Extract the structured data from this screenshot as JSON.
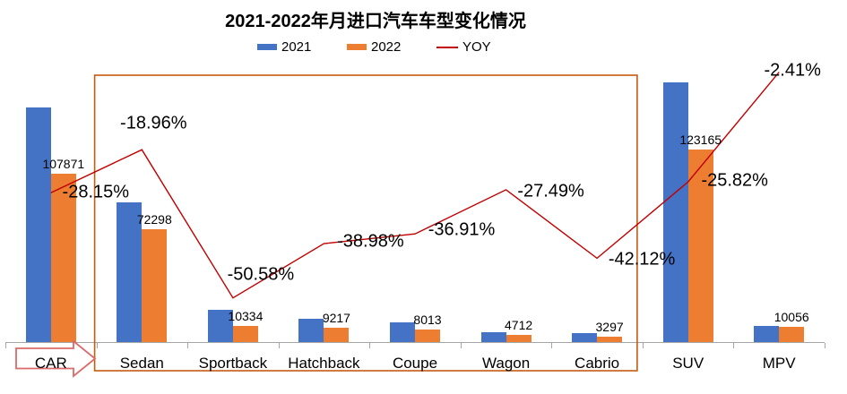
{
  "title": "2021-2022年月进口汽车车型变化情况",
  "legend": [
    {
      "label": "2021",
      "color": "#4472C4",
      "marker": "square"
    },
    {
      "label": "2022",
      "color": "#ED7D31",
      "marker": "square"
    },
    {
      "label": "YOY",
      "color": "#C00000",
      "marker": "line"
    }
  ],
  "chart_data": {
    "type": "combo",
    "categories": [
      "CAR",
      "Sedan",
      "Sportback",
      "Hatchback",
      "Coupe",
      "Wagon",
      "Cabrio",
      "SUV",
      "MPV"
    ],
    "series": [
      {
        "name": "2021",
        "type": "bar",
        "axis": "primary",
        "color": "#4472C4",
        "values": [
          150133,
          89213,
          20911,
          15105,
          12701,
          6498,
          5696,
          166036,
          10304
        ],
        "note": "values estimated from bar heights and YOY percentages; not labeled on chart"
      },
      {
        "name": "2022",
        "type": "bar",
        "axis": "primary",
        "color": "#ED7D31",
        "values": [
          107871,
          72298,
          10334,
          9217,
          8013,
          4712,
          3297,
          123165,
          10056
        ],
        "data_labels": [
          "107871",
          "72298",
          "10334",
          "9217",
          "8013",
          "4712",
          "3297",
          "123165",
          "10056"
        ]
      },
      {
        "name": "YOY",
        "type": "line",
        "axis": "secondary",
        "color": "#C00000",
        "values": [
          -28.15,
          -18.96,
          -50.58,
          -38.98,
          -36.91,
          -27.49,
          -42.12,
          -25.82,
          -2.41
        ],
        "data_labels": [
          "-28.15%",
          "-18.96%",
          "-50.58%",
          "-38.98%",
          "-36.91%",
          "-27.49%",
          "-42.12%",
          "-25.82%",
          "-2.41%"
        ]
      }
    ],
    "primary_axis": {
      "min": 0,
      "max": 180000,
      "visible": false
    },
    "secondary_axis": {
      "min": -60,
      "max": 0,
      "unit": "%",
      "visible": false
    },
    "grid": false,
    "legend_position": "top",
    "axis_color": "#A6A6A6"
  },
  "annotations": {
    "highlight_box": {
      "from_category": "Sedan",
      "to_category": "Cabrio",
      "color": "#C55A11",
      "fill": "none"
    },
    "arrow_callout": {
      "shape": "right-arrow",
      "points_at": "CAR",
      "color": "#DB6A6A",
      "fill": "none"
    }
  }
}
